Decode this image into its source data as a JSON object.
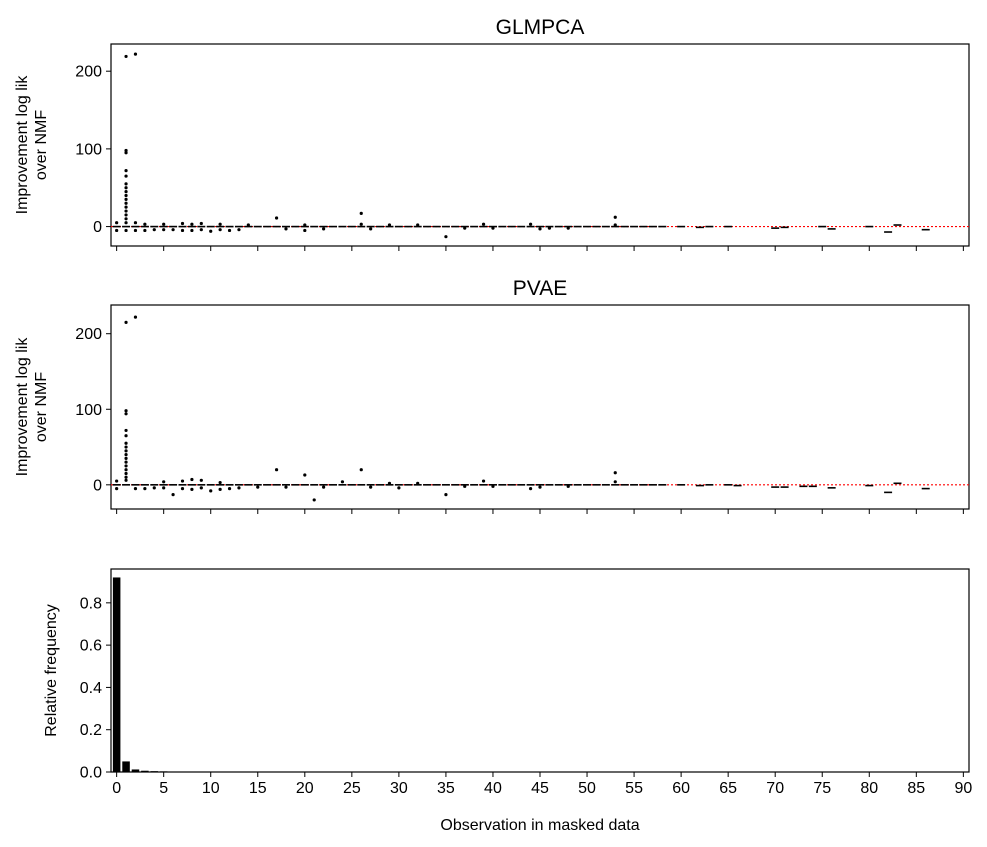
{
  "chart_data": [
    {
      "type": "scatter",
      "title": "GLMPCA",
      "ylabel": [
        "Improvement log lik",
        "over NMF"
      ],
      "ylim": [
        -25,
        235
      ],
      "xlim": [
        -0.6,
        90.6
      ],
      "yticks": [
        0,
        100,
        200
      ],
      "reference_line": {
        "y": 0,
        "color": "#ff0000",
        "style": "dotted"
      },
      "box_points": [
        [
          0,
          0
        ],
        [
          1,
          0
        ],
        [
          2,
          0
        ],
        [
          3,
          0
        ],
        [
          4,
          0
        ],
        [
          5,
          0
        ],
        [
          6,
          0
        ],
        [
          7,
          0
        ],
        [
          8,
          0
        ],
        [
          9,
          0
        ],
        [
          10,
          0
        ],
        [
          11,
          0
        ],
        [
          12,
          0
        ],
        [
          13,
          0
        ],
        [
          14,
          0
        ],
        [
          15,
          0
        ],
        [
          16,
          0
        ],
        [
          17,
          0
        ],
        [
          18,
          0
        ],
        [
          19,
          0
        ],
        [
          20,
          0
        ],
        [
          21,
          0
        ],
        [
          22,
          0
        ],
        [
          23,
          0
        ],
        [
          24,
          0
        ],
        [
          25,
          0
        ],
        [
          26,
          0
        ],
        [
          27,
          0
        ],
        [
          28,
          0
        ],
        [
          29,
          0
        ],
        [
          30,
          0
        ],
        [
          31,
          0
        ],
        [
          32,
          0
        ],
        [
          33,
          0
        ],
        [
          34,
          0
        ],
        [
          35,
          0
        ],
        [
          36,
          0
        ],
        [
          37,
          0
        ],
        [
          38,
          0
        ],
        [
          39,
          0
        ],
        [
          40,
          0
        ],
        [
          41,
          0
        ],
        [
          42,
          0
        ],
        [
          43,
          0
        ],
        [
          44,
          0
        ],
        [
          45,
          0
        ],
        [
          46,
          0
        ],
        [
          47,
          0
        ],
        [
          48,
          0
        ],
        [
          49,
          0
        ],
        [
          50,
          0
        ],
        [
          51,
          0
        ],
        [
          52,
          0
        ],
        [
          53,
          0
        ],
        [
          54,
          0
        ],
        [
          55,
          0
        ],
        [
          56,
          0
        ],
        [
          57,
          0
        ],
        [
          58,
          0
        ],
        [
          60,
          0
        ],
        [
          62,
          -1
        ],
        [
          63,
          0
        ],
        [
          65,
          0
        ],
        [
          70,
          -2
        ],
        [
          71,
          -1
        ],
        [
          75,
          0
        ],
        [
          76,
          -3
        ],
        [
          80,
          0
        ],
        [
          82,
          -7
        ],
        [
          83,
          2
        ],
        [
          86,
          -4
        ]
      ],
      "outliers": [
        [
          1,
          219
        ],
        [
          2,
          222
        ],
        [
          1,
          98
        ],
        [
          1,
          95
        ],
        [
          1,
          72
        ],
        [
          1,
          65
        ],
        [
          1,
          55
        ],
        [
          1,
          50
        ],
        [
          1,
          45
        ],
        [
          1,
          40
        ],
        [
          1,
          35
        ],
        [
          1,
          30
        ],
        [
          1,
          25
        ],
        [
          1,
          20
        ],
        [
          1,
          15
        ],
        [
          1,
          10
        ],
        [
          1,
          5
        ],
        [
          0,
          5
        ],
        [
          0,
          -5
        ],
        [
          1,
          -5
        ],
        [
          2,
          5
        ],
        [
          2,
          -5
        ],
        [
          3,
          3
        ],
        [
          3,
          -5
        ],
        [
          4,
          -4
        ],
        [
          5,
          3
        ],
        [
          5,
          -4
        ],
        [
          6,
          -4
        ],
        [
          7,
          4
        ],
        [
          7,
          -5
        ],
        [
          8,
          3
        ],
        [
          8,
          -5
        ],
        [
          9,
          4
        ],
        [
          9,
          -4
        ],
        [
          10,
          -6
        ],
        [
          11,
          3
        ],
        [
          11,
          -4
        ],
        [
          12,
          -5
        ],
        [
          13,
          -4
        ],
        [
          14,
          2
        ],
        [
          17,
          11
        ],
        [
          18,
          -3
        ],
        [
          20,
          2
        ],
        [
          20,
          -5
        ],
        [
          22,
          -3
        ],
        [
          26,
          17
        ],
        [
          26,
          3
        ],
        [
          27,
          -3
        ],
        [
          29,
          2
        ],
        [
          32,
          2
        ],
        [
          35,
          -13
        ],
        [
          37,
          -2
        ],
        [
          39,
          3
        ],
        [
          40,
          -2
        ],
        [
          44,
          3
        ],
        [
          45,
          -3
        ],
        [
          46,
          -2
        ],
        [
          48,
          -2
        ],
        [
          53,
          12
        ],
        [
          53,
          2
        ]
      ]
    },
    {
      "type": "scatter",
      "title": "PVAE",
      "ylabel": [
        "Improvement log lik",
        "over NMF"
      ],
      "ylim": [
        -32,
        238
      ],
      "xlim": [
        -0.6,
        90.6
      ],
      "yticks": [
        0,
        100,
        200
      ],
      "reference_line": {
        "y": 0,
        "color": "#ff0000",
        "style": "dotted"
      },
      "box_points": [
        [
          0,
          0
        ],
        [
          1,
          0
        ],
        [
          2,
          0
        ],
        [
          3,
          0
        ],
        [
          4,
          0
        ],
        [
          5,
          0
        ],
        [
          6,
          0
        ],
        [
          7,
          0
        ],
        [
          8,
          0
        ],
        [
          9,
          0
        ],
        [
          10,
          0
        ],
        [
          11,
          0
        ],
        [
          12,
          0
        ],
        [
          13,
          0
        ],
        [
          14,
          0
        ],
        [
          15,
          0
        ],
        [
          16,
          0
        ],
        [
          17,
          0
        ],
        [
          18,
          0
        ],
        [
          19,
          0
        ],
        [
          20,
          0
        ],
        [
          21,
          0
        ],
        [
          22,
          0
        ],
        [
          23,
          0
        ],
        [
          24,
          0
        ],
        [
          25,
          0
        ],
        [
          26,
          0
        ],
        [
          27,
          0
        ],
        [
          28,
          0
        ],
        [
          29,
          0
        ],
        [
          30,
          0
        ],
        [
          31,
          0
        ],
        [
          32,
          0
        ],
        [
          33,
          0
        ],
        [
          34,
          0
        ],
        [
          35,
          0
        ],
        [
          36,
          0
        ],
        [
          37,
          0
        ],
        [
          38,
          0
        ],
        [
          39,
          0
        ],
        [
          40,
          0
        ],
        [
          41,
          0
        ],
        [
          42,
          0
        ],
        [
          43,
          0
        ],
        [
          44,
          0
        ],
        [
          45,
          0
        ],
        [
          46,
          0
        ],
        [
          47,
          0
        ],
        [
          48,
          0
        ],
        [
          49,
          0
        ],
        [
          50,
          0
        ],
        [
          51,
          0
        ],
        [
          52,
          0
        ],
        [
          53,
          0
        ],
        [
          54,
          0
        ],
        [
          55,
          0
        ],
        [
          56,
          0
        ],
        [
          57,
          0
        ],
        [
          58,
          0
        ],
        [
          60,
          0
        ],
        [
          62,
          -1
        ],
        [
          63,
          0
        ],
        [
          65,
          0
        ],
        [
          66,
          -1
        ],
        [
          70,
          -3
        ],
        [
          71,
          -3
        ],
        [
          73,
          -2
        ],
        [
          74,
          -2
        ],
        [
          76,
          -4
        ],
        [
          80,
          -1
        ],
        [
          82,
          -10
        ],
        [
          83,
          2
        ],
        [
          86,
          -5
        ]
      ],
      "outliers": [
        [
          1,
          215
        ],
        [
          2,
          222
        ],
        [
          1,
          98
        ],
        [
          1,
          94
        ],
        [
          1,
          72
        ],
        [
          1,
          65
        ],
        [
          1,
          55
        ],
        [
          1,
          50
        ],
        [
          1,
          45
        ],
        [
          1,
          40
        ],
        [
          1,
          35
        ],
        [
          1,
          30
        ],
        [
          1,
          25
        ],
        [
          1,
          20
        ],
        [
          1,
          15
        ],
        [
          1,
          10
        ],
        [
          1,
          6
        ],
        [
          0,
          5
        ],
        [
          0,
          -5
        ],
        [
          2,
          -5
        ],
        [
          3,
          -5
        ],
        [
          4,
          -4
        ],
        [
          5,
          4
        ],
        [
          5,
          -4
        ],
        [
          6,
          -13
        ],
        [
          7,
          5
        ],
        [
          7,
          -5
        ],
        [
          8,
          7
        ],
        [
          8,
          -6
        ],
        [
          9,
          6
        ],
        [
          9,
          -4
        ],
        [
          10,
          -8
        ],
        [
          11,
          3
        ],
        [
          11,
          -6
        ],
        [
          12,
          -5
        ],
        [
          13,
          -4
        ],
        [
          15,
          -3
        ],
        [
          17,
          20
        ],
        [
          18,
          -3
        ],
        [
          20,
          13
        ],
        [
          21,
          -20
        ],
        [
          22,
          -3
        ],
        [
          24,
          4
        ],
        [
          26,
          20
        ],
        [
          27,
          -3
        ],
        [
          29,
          2
        ],
        [
          30,
          -4
        ],
        [
          32,
          2
        ],
        [
          35,
          -13
        ],
        [
          37,
          -2
        ],
        [
          39,
          5
        ],
        [
          40,
          -2
        ],
        [
          44,
          -5
        ],
        [
          45,
          -3
        ],
        [
          48,
          -2
        ],
        [
          53,
          16
        ],
        [
          53,
          4
        ]
      ]
    },
    {
      "type": "bar",
      "ylabel": "Relative frequency",
      "xlabel": "Observation in masked data",
      "ylim": [
        0,
        0.96
      ],
      "xlim": [
        -0.6,
        90.6
      ],
      "yticks": [
        "0.0",
        "0.2",
        "0.4",
        "0.6",
        "0.8"
      ],
      "xticks": [
        "0",
        "5",
        "10",
        "15",
        "20",
        "25",
        "30",
        "35",
        "40",
        "45",
        "50",
        "55",
        "60",
        "65",
        "70",
        "75",
        "80",
        "85",
        "90"
      ],
      "x": [
        0,
        1,
        2,
        3,
        4,
        5,
        6,
        7,
        8,
        9,
        10,
        11,
        12
      ],
      "values": [
        0.92,
        0.05,
        0.012,
        0.006,
        0.004,
        0.003,
        0.002,
        0.0015,
        0.001,
        0.001,
        0.0008,
        0.0006,
        0.0005
      ]
    }
  ]
}
